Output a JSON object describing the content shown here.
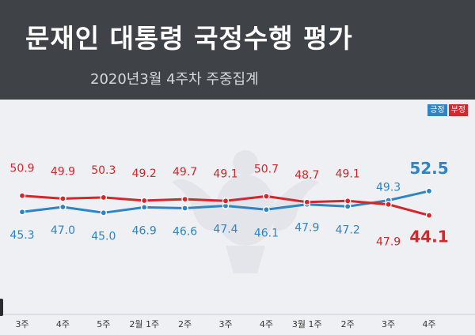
{
  "header": {
    "title": "문재인 대통령 국정수행 평가",
    "subtitle": "2020년3월 4주차 주중집계"
  },
  "legend": {
    "positive_label": "긍정",
    "negative_label": "부정"
  },
  "colors": {
    "positive": "#2e84c5",
    "negative": "#d6252b",
    "header_bg": "#3f4347",
    "plot_bg": "#eef0f4"
  },
  "chart_data": {
    "type": "line",
    "title": "문재인 대통령 국정수행 평가",
    "subtitle": "2020년3월 4주차 주중집계",
    "categories": [
      "3주",
      "4주",
      "5주",
      "2월 1주",
      "2주",
      "3주",
      "4주",
      "3월 1주",
      "2주",
      "3주",
      "4주"
    ],
    "series": [
      {
        "name": "긍정",
        "color": "#2e84c5",
        "values": [
          45.3,
          47.0,
          45.0,
          46.9,
          46.6,
          47.4,
          46.1,
          47.9,
          47.2,
          49.3,
          52.5
        ]
      },
      {
        "name": "부정",
        "color": "#d6252b",
        "values": [
          50.9,
          49.9,
          50.3,
          49.2,
          49.7,
          49.1,
          50.7,
          48.7,
          49.1,
          47.9,
          44.1
        ]
      }
    ],
    "legend_position": "top-right",
    "grid": false
  }
}
